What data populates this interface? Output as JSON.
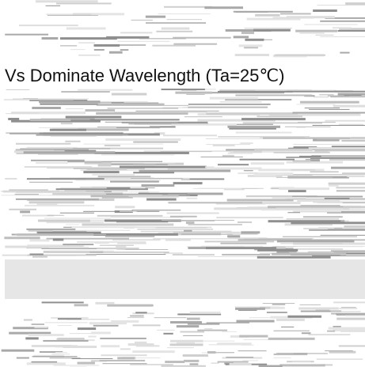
{
  "caption": "Vs Dominate Wavelength (Ta=25℃)"
}
